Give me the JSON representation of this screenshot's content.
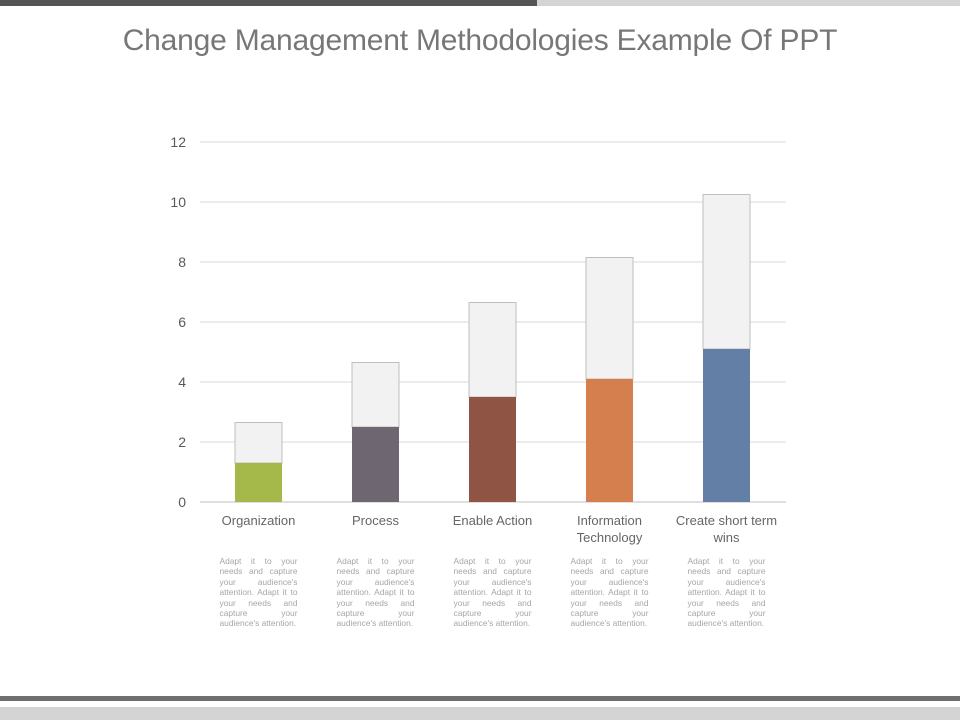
{
  "title": "Change Management Methodologies Example Of PPT",
  "descriptions": [
    "Adapt it to your needs and capture your audience's attention. Adapt it to your needs and capture your audience's attention.",
    "Adapt it to your needs and capture your audience's attention. Adapt it to your needs and capture your audience's attention.",
    "Adapt it to your needs and capture your audience's attention. Adapt it to your needs and capture your audience's attention.",
    "Adapt it to your needs and capture your audience's attention. Adapt it to your needs and capture your audience's attention.",
    "Adapt it to your needs and capture your audience's attention. Adapt it to your needs and capture your audience's attention."
  ],
  "colors": {
    "title": "#777777",
    "stack_top": "#f2f2f2",
    "stack_border": "#bfbfbf",
    "gridline": "#d9d9d9",
    "bars": [
      "#a5b94a",
      "#6e6670",
      "#8f5444",
      "#d47f4d",
      "#647fa6"
    ]
  },
  "chart_data": {
    "type": "bar",
    "stacked": true,
    "title": "",
    "xlabel": "",
    "ylabel": "",
    "categories": [
      "Organization",
      "Process",
      "Enable Action",
      "Information Technology",
      "Create short term wins"
    ],
    "series": [
      {
        "values": [
          1.3,
          2.5,
          3.5,
          4.1,
          5.1
        ]
      },
      {
        "values": [
          1.35,
          2.15,
          3.15,
          4.05,
          5.15
        ]
      }
    ],
    "ylim": [
      0,
      12
    ],
    "yticks": [
      0,
      2,
      4,
      6,
      8,
      10,
      12
    ],
    "grid": true,
    "legend": "none"
  }
}
